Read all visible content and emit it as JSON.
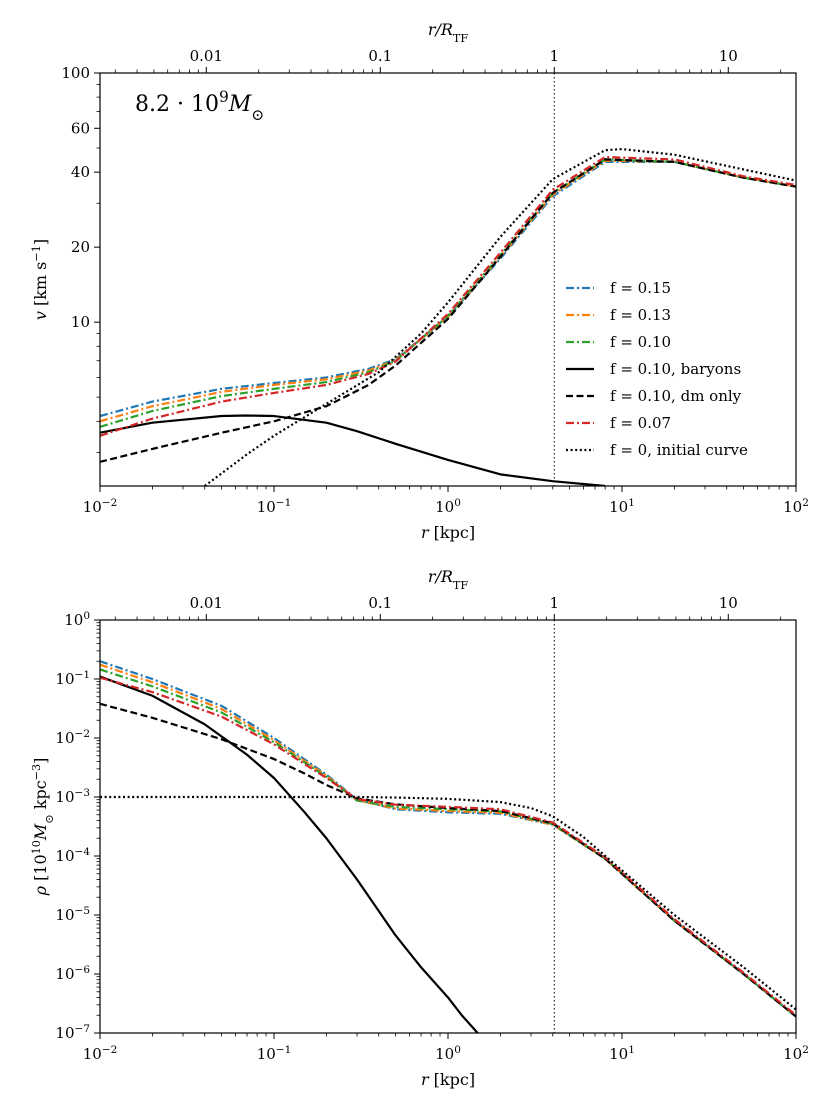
{
  "colors": {
    "f015": "#1f77b4",
    "f013": "#ff7f0e",
    "f010": "#2ca02c",
    "f007": "#d62728",
    "black": "#000000"
  },
  "chart_data": [
    {
      "id": "velocity",
      "type": "line",
      "annotation": {
        "text": "8.2 · 10",
        "sup": "9",
        "unit": "M",
        "sub": "⊙"
      },
      "xlabel": {
        "sym": "r",
        "unit": "[kpc]"
      },
      "ylabel": {
        "sym": "v",
        "unit": "[km s",
        "exp": "−1",
        "close": "]"
      },
      "toplabel": {
        "sym": "r/R",
        "sub": "TF"
      },
      "xscale": "log",
      "yscale": "log",
      "xlim": [
        0.01,
        100
      ],
      "ylim": [
        2.2,
        100
      ],
      "top_axis_ratio": 0.245,
      "xticks": [
        {
          "v": 0.01,
          "m": "10",
          "e": "−2"
        },
        {
          "v": 0.1,
          "m": "10",
          "e": "−1"
        },
        {
          "v": 1,
          "m": "10",
          "e": "0"
        },
        {
          "v": 10,
          "m": "10",
          "e": "1"
        },
        {
          "v": 100,
          "m": "10",
          "e": "2"
        }
      ],
      "yticks": [
        {
          "v": 10,
          "t": "10"
        },
        {
          "v": 20,
          "t": "20"
        },
        {
          "v": 40,
          "t": "40"
        },
        {
          "v": 60,
          "t": "60"
        },
        {
          "v": 100,
          "t": "100"
        }
      ],
      "top_ticks": [
        {
          "v": 0.01,
          "t": "0.01"
        },
        {
          "v": 0.1,
          "t": "0.1"
        },
        {
          "v": 1,
          "t": "1"
        },
        {
          "v": 10,
          "t": "10"
        }
      ],
      "vline_x": 4.08,
      "legend": {
        "loc": "lower right"
      },
      "series": [
        {
          "name": "f = 0.15",
          "color": "#1f77b4",
          "dash": "dashdot",
          "x": [
            0.01,
            0.02,
            0.05,
            0.1,
            0.2,
            0.35,
            0.5,
            1,
            2,
            4,
            8,
            20,
            50,
            100
          ],
          "y": [
            4.2,
            4.8,
            5.4,
            5.7,
            6.0,
            6.5,
            7.1,
            10.5,
            18,
            32,
            44,
            44,
            38,
            35
          ]
        },
        {
          "name": "f = 0.13",
          "color": "#ff7f0e",
          "dash": "dashdot",
          "x": [
            0.01,
            0.02,
            0.05,
            0.1,
            0.2,
            0.35,
            0.5,
            1,
            2,
            4,
            8,
            20,
            50,
            100
          ],
          "y": [
            4.0,
            4.6,
            5.25,
            5.6,
            5.9,
            6.4,
            7.05,
            10.5,
            18.3,
            32.5,
            44.5,
            44,
            38,
            35
          ]
        },
        {
          "name": "f = 0.10",
          "color": "#2ca02c",
          "dash": "dashdot",
          "x": [
            0.01,
            0.02,
            0.05,
            0.1,
            0.2,
            0.35,
            0.5,
            1,
            2,
            4,
            8,
            20,
            50,
            100
          ],
          "y": [
            3.8,
            4.4,
            5.05,
            5.4,
            5.75,
            6.3,
            7.0,
            10.6,
            18.6,
            33,
            45,
            44,
            38,
            35
          ]
        },
        {
          "name": "f = 0.10, baryons",
          "color": "#000000",
          "dash": "solid",
          "x": [
            0.01,
            0.02,
            0.05,
            0.07,
            0.1,
            0.2,
            0.3,
            0.5,
            1,
            2,
            4,
            8
          ],
          "y": [
            3.6,
            3.95,
            4.2,
            4.22,
            4.2,
            3.95,
            3.65,
            3.25,
            2.8,
            2.45,
            2.3,
            2.2
          ]
        },
        {
          "name": "f = 0.10, dm only",
          "color": "#000000",
          "dash": "dashed",
          "x": [
            0.01,
            0.02,
            0.05,
            0.1,
            0.2,
            0.35,
            0.5,
            1,
            2,
            4,
            8,
            20,
            50,
            100
          ],
          "y": [
            2.75,
            3.1,
            3.6,
            4.0,
            4.6,
            5.6,
            6.7,
            10.3,
            18.3,
            33,
            45,
            44,
            38,
            35
          ]
        },
        {
          "name": "f = 0.07",
          "color": "#d62728",
          "dash": "dashdot",
          "x": [
            0.01,
            0.02,
            0.05,
            0.1,
            0.2,
            0.35,
            0.5,
            1,
            2,
            4,
            8,
            20,
            50,
            100
          ],
          "y": [
            3.5,
            4.1,
            4.8,
            5.2,
            5.6,
            6.2,
            6.95,
            10.8,
            19,
            34,
            46,
            45,
            38.5,
            35.5
          ]
        },
        {
          "name": "f = 0, initial curve",
          "color": "#000000",
          "dash": "dotted",
          "x": [
            0.04,
            0.07,
            0.1,
            0.2,
            0.4,
            0.7,
            1,
            2,
            4,
            8,
            10,
            20,
            50,
            100
          ],
          "y": [
            2.2,
            2.95,
            3.5,
            4.7,
            6.3,
            9.0,
            12,
            22,
            37.5,
            49,
            49.5,
            47,
            41,
            37
          ]
        }
      ]
    },
    {
      "id": "density",
      "type": "line",
      "xlabel": {
        "sym": "r",
        "unit": "[kpc]"
      },
      "ylabel": {
        "sym": "ρ",
        "unit": "[10",
        "exp": "10",
        "mid": "M",
        "msub": "⊙",
        "tail": " kpc",
        "exp2": "−3",
        "close": "]"
      },
      "toplabel": {
        "sym": "r/R",
        "sub": "TF"
      },
      "xscale": "log",
      "yscale": "log",
      "xlim": [
        0.01,
        100
      ],
      "ylim": [
        1e-07,
        1
      ],
      "top_axis_ratio": 0.245,
      "xticks": [
        {
          "v": 0.01,
          "m": "10",
          "e": "−2"
        },
        {
          "v": 0.1,
          "m": "10",
          "e": "−1"
        },
        {
          "v": 1,
          "m": "10",
          "e": "0"
        },
        {
          "v": 10,
          "m": "10",
          "e": "1"
        },
        {
          "v": 100,
          "m": "10",
          "e": "2"
        }
      ],
      "yticks": [
        {
          "v": 1e-07,
          "m": "10",
          "e": "−7"
        },
        {
          "v": 1e-06,
          "m": "10",
          "e": "−6"
        },
        {
          "v": 1e-05,
          "m": "10",
          "e": "−5"
        },
        {
          "v": 0.0001,
          "m": "10",
          "e": "−4"
        },
        {
          "v": 0.001,
          "m": "10",
          "e": "−3"
        },
        {
          "v": 0.01,
          "m": "10",
          "e": "−2"
        },
        {
          "v": 0.1,
          "m": "10",
          "e": "−1"
        },
        {
          "v": 1,
          "m": "10",
          "e": "0"
        }
      ],
      "top_ticks": [
        {
          "v": 0.01,
          "t": "0.01"
        },
        {
          "v": 0.1,
          "t": "0.1"
        },
        {
          "v": 1,
          "t": "1"
        },
        {
          "v": 10,
          "t": "10"
        }
      ],
      "vline_x": 4.08,
      "series": [
        {
          "name": "f = 0.15",
          "color": "#1f77b4",
          "dash": "dashdot",
          "x": [
            0.01,
            0.02,
            0.05,
            0.1,
            0.2,
            0.3,
            0.5,
            1,
            2,
            4,
            8,
            20,
            50,
            100
          ],
          "y": [
            0.2,
            0.1,
            0.035,
            0.01,
            0.0024,
            0.0009,
            0.00062,
            0.00055,
            0.00052,
            0.00034,
            9e-05,
            8e-06,
            1e-06,
            1.9e-07
          ]
        },
        {
          "name": "f = 0.13",
          "color": "#ff7f0e",
          "dash": "dashdot",
          "x": [
            0.01,
            0.02,
            0.05,
            0.1,
            0.2,
            0.3,
            0.5,
            1,
            2,
            4,
            8,
            20,
            50,
            100
          ],
          "y": [
            0.175,
            0.088,
            0.031,
            0.0092,
            0.0023,
            0.00088,
            0.00064,
            0.00058,
            0.00054,
            0.00034,
            9e-05,
            8e-06,
            1e-06,
            1.9e-07
          ]
        },
        {
          "name": "f = 0.10",
          "color": "#2ca02c",
          "dash": "dashdot",
          "x": [
            0.01,
            0.02,
            0.05,
            0.1,
            0.2,
            0.3,
            0.5,
            1,
            2,
            4,
            8,
            20,
            50,
            100
          ],
          "y": [
            0.145,
            0.075,
            0.027,
            0.0085,
            0.0022,
            0.00087,
            0.00068,
            0.00062,
            0.00057,
            0.00035,
            9e-05,
            8e-06,
            1e-06,
            1.9e-07
          ]
        },
        {
          "name": "f = 0.10, baryons",
          "color": "#000000",
          "dash": "solid",
          "x": [
            0.01,
            0.02,
            0.04,
            0.07,
            0.1,
            0.15,
            0.2,
            0.3,
            0.5,
            0.7,
            1,
            1.2,
            1.48
          ],
          "y": [
            0.11,
            0.052,
            0.017,
            0.0052,
            0.0021,
            0.00055,
            0.0002,
            4e-05,
            4.5e-06,
            1.3e-06,
            4e-07,
            2e-07,
            1e-07
          ]
        },
        {
          "name": "f = 0.10, dm only",
          "color": "#000000",
          "dash": "dashed",
          "x": [
            0.01,
            0.02,
            0.05,
            0.1,
            0.15,
            0.2,
            0.3,
            0.5,
            1,
            2,
            4,
            8,
            20,
            50,
            100
          ],
          "y": [
            0.038,
            0.022,
            0.0095,
            0.0044,
            0.0025,
            0.0016,
            0.00095,
            0.00075,
            0.00065,
            0.00058,
            0.00036,
            9e-05,
            8e-06,
            1e-06,
            1.9e-07
          ]
        },
        {
          "name": "f = 0.07",
          "color": "#d62728",
          "dash": "dashdot",
          "x": [
            0.01,
            0.02,
            0.05,
            0.1,
            0.2,
            0.3,
            0.5,
            1,
            2,
            4,
            8,
            20,
            50,
            100
          ],
          "y": [
            0.105,
            0.06,
            0.023,
            0.0078,
            0.0021,
            0.00092,
            0.00074,
            0.00068,
            0.00062,
            0.00037,
            9.5e-05,
            8.5e-06,
            1.05e-06,
            2e-07
          ]
        },
        {
          "name": "f = 0, initial curve",
          "color": "#000000",
          "dash": "dotted",
          "x": [
            0.01,
            0.05,
            0.1,
            0.3,
            0.5,
            1,
            2,
            3,
            4,
            6,
            8,
            20,
            50,
            100
          ],
          "y": [
            0.001,
            0.001,
            0.001,
            0.001,
            0.00098,
            0.00093,
            0.00082,
            0.00065,
            0.00047,
            0.00021,
            0.0001,
            1e-05,
            1.3e-06,
            2.5e-07
          ]
        }
      ]
    }
  ]
}
